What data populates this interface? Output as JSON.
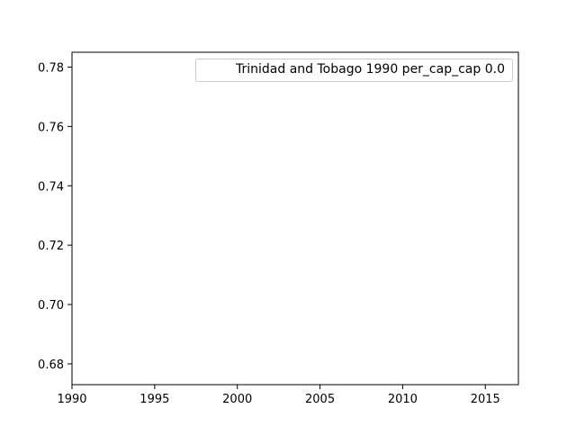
{
  "chart_data": {
    "type": "line",
    "title": "",
    "xlabel": "",
    "ylabel": "",
    "xlim": [
      1990,
      2017
    ],
    "ylim": [
      0.673,
      0.785
    ],
    "x_ticks": [
      1990,
      1995,
      2000,
      2005,
      2010,
      2015
    ],
    "y_ticks": [
      0.68,
      0.7,
      0.72,
      0.74,
      0.76,
      0.78
    ],
    "x_tick_labels": [
      "1990",
      "1995",
      "2000",
      "2005",
      "2010",
      "2015"
    ],
    "y_tick_labels": [
      "0.68",
      "0.70",
      "0.72",
      "0.74",
      "0.76",
      "0.78"
    ],
    "grid": false,
    "legend_position": "top-right",
    "series": [
      {
        "name": "Trinidad and Tobago 1990 per_cap_cap 0.0",
        "x": [],
        "y": []
      }
    ],
    "colors": {
      "axis": "#000000",
      "legend_border": "#cccccc",
      "background": "#ffffff"
    }
  }
}
